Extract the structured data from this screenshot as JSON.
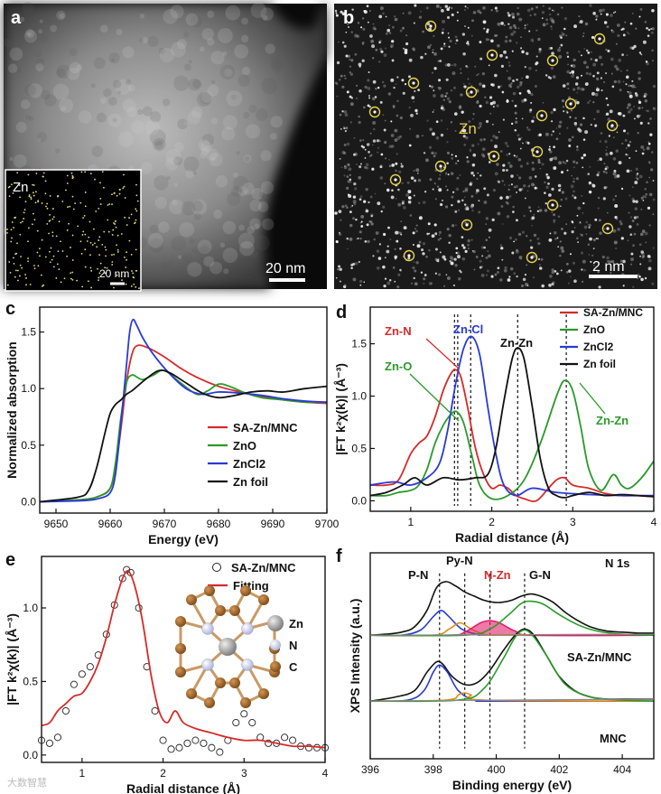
{
  "panels": {
    "a": {
      "letter": "a",
      "inset_label": "Zn",
      "scale_main": "20 nm",
      "scale_inset": "20 nm"
    },
    "b": {
      "letter": "b",
      "center_label": "Zn",
      "scale": "2 nm"
    },
    "c": {
      "letter": "c"
    },
    "d": {
      "letter": "d"
    },
    "e": {
      "letter": "e",
      "struct_legend": [
        {
          "label": "Zn",
          "color": "#8a8a8a"
        },
        {
          "label": "N",
          "color": "#c9cde8"
        },
        {
          "label": "C",
          "color": "#a0662a"
        }
      ]
    },
    "f": {
      "letter": "f"
    }
  },
  "watermark": "大数智慧",
  "chart_data": [
    {
      "id": "c",
      "type": "line",
      "xlabel": "Energy (eV)",
      "ylabel": "Normalized absorption",
      "xlim": [
        9647,
        9700
      ],
      "ylim": [
        -0.1,
        1.72
      ],
      "xticks": [
        9650,
        9660,
        9670,
        9680,
        9690,
        9700
      ],
      "yticks": [
        0.0,
        0.5,
        1.0,
        1.5
      ],
      "legend": "lower-right",
      "series": [
        {
          "name": "SA-Zn/MNC",
          "color": "#d62a2a",
          "x": [
            9647,
            9655,
            9658,
            9660,
            9661,
            9662,
            9663,
            9664,
            9665,
            9667,
            9670,
            9673,
            9676,
            9680,
            9684,
            9688,
            9692,
            9696,
            9700
          ],
          "y": [
            0.0,
            0.02,
            0.05,
            0.12,
            0.3,
            0.65,
            1.05,
            1.3,
            1.38,
            1.36,
            1.28,
            1.18,
            1.1,
            1.02,
            0.97,
            0.93,
            0.9,
            0.88,
            0.87
          ]
        },
        {
          "name": "ZnO",
          "color": "#2a9a2a",
          "x": [
            9647,
            9655,
            9658,
            9660,
            9661,
            9662,
            9663,
            9664,
            9665,
            9666,
            9668,
            9670,
            9673,
            9676,
            9678,
            9680,
            9682,
            9685,
            9688,
            9692,
            9696,
            9700
          ],
          "y": [
            0.0,
            0.02,
            0.05,
            0.12,
            0.35,
            0.75,
            1.05,
            1.12,
            1.1,
            1.08,
            1.12,
            1.16,
            1.05,
            0.95,
            0.98,
            1.04,
            1.02,
            0.96,
            0.92,
            0.9,
            0.88,
            0.88
          ]
        },
        {
          "name": "ZnCl2",
          "color": "#2a3ad6",
          "x": [
            9647,
            9655,
            9658,
            9660,
            9661,
            9662,
            9663,
            9663.6,
            9664.2,
            9665,
            9666,
            9668,
            9671,
            9674,
            9677,
            9680,
            9684,
            9688,
            9692,
            9696,
            9700
          ],
          "y": [
            0.0,
            0.01,
            0.03,
            0.08,
            0.25,
            0.7,
            1.2,
            1.5,
            1.61,
            1.55,
            1.45,
            1.3,
            1.13,
            1.0,
            0.95,
            0.97,
            0.96,
            0.94,
            0.91,
            0.89,
            0.88
          ]
        },
        {
          "name": "Zn foil",
          "color": "#111111",
          "x": [
            9647,
            9654,
            9656,
            9657.5,
            9659,
            9660,
            9661,
            9662,
            9663,
            9664,
            9665,
            9667,
            9669,
            9671,
            9674,
            9677,
            9680,
            9683,
            9686,
            9689,
            9692,
            9696,
            9700
          ],
          "y": [
            0.0,
            0.04,
            0.1,
            0.3,
            0.6,
            0.78,
            0.86,
            0.9,
            0.95,
            0.98,
            1.02,
            1.1,
            1.16,
            1.14,
            1.05,
            0.96,
            0.92,
            0.94,
            0.97,
            0.98,
            0.97,
            1.0,
            1.02
          ]
        }
      ]
    },
    {
      "id": "d",
      "type": "line",
      "xlabel": "Radial distance (Å)",
      "ylabel": "|FT k²χ(k)| (Å⁻³)",
      "xlim": [
        0.5,
        4.0
      ],
      "ylim": [
        -0.1,
        1.85
      ],
      "xticks": [
        1,
        2,
        3,
        4
      ],
      "yticks": [
        0.0,
        0.5,
        1.0,
        1.5
      ],
      "legend": "top-right",
      "annotations": [
        {
          "text": "Zn-N",
          "color": "#d62a2a"
        },
        {
          "text": "Zn-Cl",
          "color": "#2a3ad6"
        },
        {
          "text": "Zn-Zn",
          "color": "#111111"
        },
        {
          "text": "Zn-O",
          "color": "#2a9a2a"
        },
        {
          "text": "Zn-Zn",
          "color": "#2a9a2a"
        }
      ],
      "dashed_x": [
        1.54,
        1.58,
        1.74,
        2.32,
        2.92
      ],
      "series": [
        {
          "name": "SA-Zn/MNC",
          "color": "#d62a2a",
          "x": [
            0.5,
            0.7,
            0.85,
            1.0,
            1.1,
            1.2,
            1.3,
            1.4,
            1.5,
            1.56,
            1.62,
            1.7,
            1.8,
            1.9,
            2.0,
            2.1,
            2.2,
            2.3,
            2.4,
            2.55,
            2.7,
            2.8,
            2.9,
            3.0,
            3.2,
            3.4,
            3.6,
            3.8,
            4.0
          ],
          "y": [
            0.15,
            0.15,
            0.2,
            0.45,
            0.55,
            0.62,
            0.8,
            1.05,
            1.22,
            1.25,
            1.18,
            0.9,
            0.5,
            0.25,
            0.12,
            0.15,
            0.12,
            0.05,
            0.02,
            0.0,
            0.12,
            0.2,
            0.22,
            0.15,
            0.12,
            0.07,
            0.05,
            0.05,
            0.04
          ]
        },
        {
          "name": "ZnO",
          "color": "#2a9a2a",
          "x": [
            0.5,
            0.7,
            0.85,
            1.0,
            1.1,
            1.2,
            1.3,
            1.4,
            1.5,
            1.57,
            1.65,
            1.75,
            1.85,
            2.0,
            2.2,
            2.4,
            2.6,
            2.8,
            2.9,
            3.0,
            3.1,
            3.2,
            3.35,
            3.5,
            3.6,
            3.7,
            3.85,
            4.0
          ],
          "y": [
            0.05,
            0.05,
            0.08,
            0.1,
            0.15,
            0.3,
            0.55,
            0.72,
            0.83,
            0.85,
            0.75,
            0.45,
            0.15,
            0.02,
            0.05,
            0.2,
            0.55,
            1.0,
            1.15,
            1.05,
            0.7,
            0.3,
            0.1,
            0.25,
            0.15,
            0.12,
            0.22,
            0.38
          ]
        },
        {
          "name": "ZnCl2",
          "color": "#2a3ad6",
          "x": [
            0.5,
            0.8,
            1.0,
            1.2,
            1.35,
            1.45,
            1.55,
            1.65,
            1.75,
            1.85,
            1.95,
            2.05,
            2.15,
            2.3,
            2.5,
            2.8,
            3.2,
            3.6,
            4.0
          ],
          "y": [
            0.15,
            0.18,
            0.15,
            0.22,
            0.35,
            0.65,
            1.1,
            1.45,
            1.57,
            1.4,
            0.9,
            0.45,
            0.15,
            0.05,
            0.12,
            0.08,
            0.06,
            0.05,
            0.05
          ]
        },
        {
          "name": "Zn foil",
          "color": "#111111",
          "x": [
            0.5,
            0.7,
            0.9,
            1.05,
            1.2,
            1.4,
            1.6,
            1.8,
            1.95,
            2.05,
            2.15,
            2.25,
            2.32,
            2.4,
            2.5,
            2.6,
            2.7,
            2.8,
            2.9,
            3.0,
            3.2,
            3.4,
            3.6,
            3.8,
            4.0
          ],
          "y": [
            0.05,
            0.08,
            0.15,
            0.22,
            0.15,
            0.22,
            0.2,
            0.22,
            0.25,
            0.5,
            0.95,
            1.35,
            1.46,
            1.35,
            0.9,
            0.4,
            0.12,
            0.05,
            0.03,
            0.05,
            0.08,
            0.05,
            0.06,
            0.05,
            0.04
          ]
        }
      ]
    },
    {
      "id": "e",
      "type": "line",
      "xlabel": "Radial distance (Å)",
      "ylabel": "|FT k²χ(k)| (Å⁻³)",
      "xlim": [
        0.5,
        4.0
      ],
      "ylim": [
        -0.05,
        1.35
      ],
      "xticks": [
        1,
        2,
        3,
        4
      ],
      "yticks": [
        0.0,
        0.5,
        1.0
      ],
      "legend": "top-right",
      "series": [
        {
          "name": "SA-Zn/MNC",
          "style": "circles",
          "color": "#222222",
          "x": [
            0.5,
            0.6,
            0.7,
            0.8,
            0.9,
            1.0,
            1.1,
            1.2,
            1.3,
            1.4,
            1.5,
            1.55,
            1.6,
            1.7,
            1.8,
            1.9,
            2.0,
            2.1,
            2.2,
            2.3,
            2.4,
            2.5,
            2.6,
            2.7,
            2.8,
            2.9,
            3.0,
            3.1,
            3.2,
            3.3,
            3.4,
            3.5,
            3.6,
            3.7,
            3.8,
            3.9,
            4.0
          ],
          "y": [
            0.1,
            0.08,
            0.12,
            0.3,
            0.48,
            0.55,
            0.6,
            0.68,
            0.82,
            1.02,
            1.2,
            1.26,
            1.24,
            1.0,
            0.6,
            0.3,
            0.1,
            0.04,
            0.05,
            0.08,
            0.1,
            0.08,
            0.05,
            0.02,
            0.1,
            0.22,
            0.28,
            0.22,
            0.12,
            0.08,
            0.08,
            0.12,
            0.1,
            0.06,
            0.05,
            0.05,
            0.05
          ]
        },
        {
          "name": "Fitting",
          "style": "line",
          "color": "#d62a2a",
          "x": [
            0.5,
            0.6,
            0.7,
            0.8,
            0.9,
            1.0,
            1.1,
            1.2,
            1.3,
            1.4,
            1.5,
            1.57,
            1.65,
            1.75,
            1.85,
            1.95,
            2.05,
            2.15,
            2.25,
            2.4,
            2.6,
            2.8,
            3.0,
            3.2,
            3.4,
            3.6,
            3.8,
            4.0
          ],
          "y": [
            0.2,
            0.22,
            0.3,
            0.35,
            0.4,
            0.42,
            0.5,
            0.62,
            0.8,
            1.02,
            1.2,
            1.25,
            1.15,
            0.9,
            0.55,
            0.3,
            0.22,
            0.3,
            0.22,
            0.18,
            0.15,
            0.12,
            0.1,
            0.1,
            0.08,
            0.06,
            0.06,
            0.05
          ]
        }
      ]
    },
    {
      "id": "f",
      "type": "line",
      "xlabel": "Binding energy (eV)",
      "ylabel": "XPS Intensity (a.u.)",
      "xlim": [
        396,
        405
      ],
      "ylim": [
        0,
        1
      ],
      "xticks": [
        396,
        398,
        400,
        402,
        404
      ],
      "annotations": [
        {
          "text": "N 1s",
          "color": "#111111"
        },
        {
          "text": "P-N",
          "color": "#111111"
        },
        {
          "text": "Py-N",
          "color": "#111111"
        },
        {
          "text": "N-Zn",
          "color": "#d62a2a"
        },
        {
          "text": "G-N",
          "color": "#111111"
        },
        {
          "text": "SA-Zn/MNC",
          "color": "#111111"
        },
        {
          "text": "MNC",
          "color": "#111111"
        }
      ],
      "dashed_x": [
        398.2,
        399.0,
        399.8,
        400.9
      ],
      "series": [
        {
          "name": "SA-Zn/MNC envelope",
          "color": "#111111",
          "x": [
            396,
            396.5,
            397,
            397.4,
            397.8,
            398.1,
            398.4,
            398.7,
            399.0,
            399.3,
            399.6,
            399.9,
            400.2,
            400.5,
            400.8,
            401.1,
            401.4,
            401.8,
            402.2,
            402.6,
            403.0,
            403.5,
            404,
            404.5,
            405
          ],
          "y": [
            0.6,
            0.605,
            0.615,
            0.64,
            0.72,
            0.83,
            0.86,
            0.84,
            0.81,
            0.79,
            0.77,
            0.76,
            0.76,
            0.77,
            0.79,
            0.8,
            0.79,
            0.76,
            0.71,
            0.67,
            0.64,
            0.62,
            0.615,
            0.61,
            0.61
          ]
        },
        {
          "name": "SA-Zn/MNC P-N",
          "color": "#2a3ad6",
          "x": [
            396,
            397,
            397.6,
            398.0,
            398.25,
            398.5,
            398.9,
            399.4,
            400,
            405
          ],
          "y": [
            0.6,
            0.6,
            0.625,
            0.69,
            0.72,
            0.69,
            0.63,
            0.605,
            0.6,
            0.6
          ]
        },
        {
          "name": "SA-Zn/MNC Py-N",
          "color": "#e08a1a",
          "x": [
            396,
            398,
            398.5,
            398.85,
            399.2,
            399.6,
            400,
            405
          ],
          "y": [
            0.6,
            0.6,
            0.63,
            0.66,
            0.63,
            0.605,
            0.6,
            0.6
          ]
        },
        {
          "name": "SA-Zn/MNC N-Zn",
          "color": "#e0206a",
          "fill": true,
          "x": [
            396,
            398.5,
            399.0,
            399.5,
            399.8,
            400.1,
            400.6,
            401.2,
            405
          ],
          "y": [
            0.6,
            0.6,
            0.615,
            0.66,
            0.67,
            0.66,
            0.62,
            0.6,
            0.6
          ]
        },
        {
          "name": "SA-Zn/MNC G-N",
          "color": "#2a9a2a",
          "x": [
            396,
            399,
            399.8,
            400.4,
            400.8,
            401.1,
            401.5,
            402,
            402.6,
            403.2,
            404,
            405
          ],
          "y": [
            0.6,
            0.6,
            0.63,
            0.7,
            0.755,
            0.765,
            0.75,
            0.7,
            0.65,
            0.62,
            0.605,
            0.6
          ]
        },
        {
          "name": "MNC envelope",
          "color": "#111111",
          "x": [
            396,
            396.8,
            397.4,
            397.8,
            398.1,
            398.3,
            398.6,
            399.0,
            399.4,
            399.8,
            400.2,
            400.6,
            400.9,
            401.2,
            401.6,
            402.0,
            402.5,
            403.0,
            403.5,
            404,
            405
          ],
          "y": [
            0.28,
            0.3,
            0.33,
            0.42,
            0.47,
            0.46,
            0.4,
            0.36,
            0.37,
            0.43,
            0.52,
            0.6,
            0.63,
            0.6,
            0.5,
            0.4,
            0.33,
            0.3,
            0.29,
            0.29,
            0.29
          ]
        },
        {
          "name": "MNC P-N",
          "color": "#2a3ad6",
          "x": [
            396,
            397.2,
            397.7,
            398.0,
            398.2,
            398.45,
            398.8,
            399.3,
            400,
            405
          ],
          "y": [
            0.28,
            0.285,
            0.33,
            0.42,
            0.455,
            0.42,
            0.33,
            0.285,
            0.28,
            0.28
          ]
        },
        {
          "name": "MNC Py-N",
          "color": "#e08a1a",
          "x": [
            396,
            398.4,
            398.8,
            399.0,
            399.2,
            399.6,
            405
          ],
          "y": [
            0.28,
            0.285,
            0.31,
            0.32,
            0.31,
            0.285,
            0.28
          ]
        },
        {
          "name": "MNC G-N",
          "color": "#2a9a2a",
          "x": [
            396,
            398.8,
            399.6,
            400.2,
            400.6,
            400.9,
            401.2,
            401.6,
            402.2,
            403,
            404,
            405
          ],
          "y": [
            0.28,
            0.285,
            0.34,
            0.48,
            0.59,
            0.625,
            0.59,
            0.5,
            0.36,
            0.3,
            0.285,
            0.28
          ]
        }
      ]
    }
  ]
}
